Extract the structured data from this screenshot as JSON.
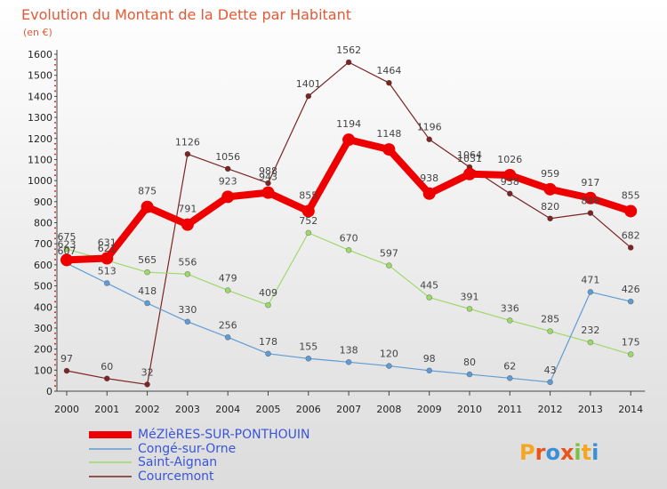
{
  "colors": {
    "background_top": "#ffffff",
    "background_bottom": "#dcdcdc",
    "title": "#e25a35",
    "legend_text": "#3a55d8",
    "axis_dots": "#cc0000"
  },
  "logo": {
    "letters": [
      "P",
      "r",
      "o",
      "x",
      "i",
      "t",
      "i"
    ],
    "colors": [
      "#f5a623",
      "#e8541e",
      "#3a8fd9",
      "#e8541e",
      "#7cc242",
      "#f5a623",
      "#3a8fd9"
    ]
  },
  "chart_data": {
    "type": "line",
    "title": "Evolution du Montant de la Dette par Habitant",
    "subtitle": "(en €)",
    "x": [
      "2000",
      "2001",
      "2002",
      "2003",
      "2004",
      "2005",
      "2006",
      "2007",
      "2008",
      "2009",
      "2010",
      "2011",
      "2012",
      "2013",
      "2014"
    ],
    "ylim": [
      0,
      1600
    ],
    "yticks": [
      0,
      100,
      200,
      300,
      400,
      500,
      600,
      700,
      800,
      900,
      1000,
      1100,
      1200,
      1300,
      1400,
      1500,
      1600
    ],
    "grid": false,
    "legend_position": "bottom-left",
    "series": [
      {
        "name": "MéZlèRES-SUR-PONTHOUIN",
        "color": "#ee0000",
        "width": 8,
        "marker": 7,
        "values": [
          623,
          631,
          875,
          791,
          923,
          943,
          855,
          1194,
          1148,
          938,
          1031,
          1026,
          959,
          917,
          855
        ]
      },
      {
        "name": "Congé-sur-Orne",
        "color": "#5f9cd4",
        "width": 1.2,
        "marker": 3,
        "values": [
          607,
          513,
          418,
          330,
          256,
          178,
          155,
          138,
          120,
          98,
          80,
          62,
          43,
          471,
          426
        ]
      },
      {
        "name": "Saint-Aignan",
        "color": "#9fd86a",
        "width": 1.2,
        "marker": 3,
        "values": [
          675,
          621,
          565,
          556,
          479,
          409,
          752,
          670,
          597,
          445,
          391,
          336,
          285,
          232,
          175
        ]
      },
      {
        "name": "Courcemont",
        "color": "#7b2424",
        "width": 1.2,
        "marker": 3,
        "values": [
          97,
          60,
          32,
          1126,
          1056,
          988,
          1401,
          1562,
          1464,
          1196,
          1064,
          938,
          820,
          846,
          682
        ]
      }
    ]
  }
}
